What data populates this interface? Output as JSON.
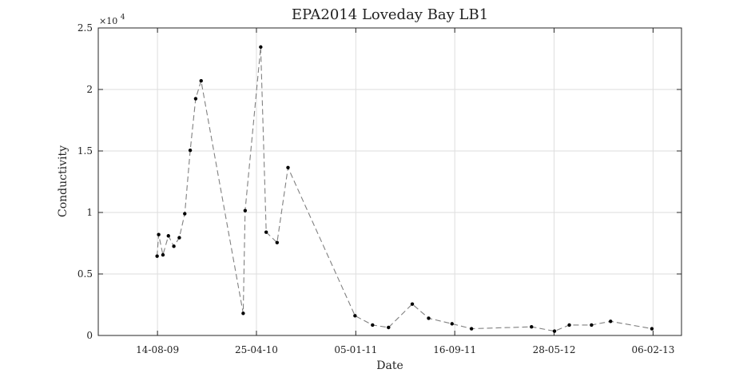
{
  "chart_data": {
    "type": "line",
    "title": "EPA2014 Loveday Bay LB1",
    "xlabel": "Date",
    "ylabel": "Conductivity",
    "y_multiplier_label": "×10",
    "y_multiplier_exponent": "4",
    "x_range": [
      "2009-03-15",
      "2013-04-20"
    ],
    "ylim": [
      0,
      2.5
    ],
    "y_ticks": [
      0,
      0.5,
      1,
      1.5,
      2,
      2.5
    ],
    "y_tick_labels": [
      "0",
      "0.5",
      "1",
      "1.5",
      "2",
      "2.5"
    ],
    "x_ticks": [
      "2009-08-14",
      "2010-04-25",
      "2011-01-05",
      "2011-09-16",
      "2012-05-28",
      "2013-02-06"
    ],
    "x_tick_labels": [
      "14-08-09",
      "25-04-10",
      "05-01-11",
      "16-09-11",
      "28-05-12",
      "06-02-13"
    ],
    "grid": true,
    "marker_color": "#000000",
    "line_color": "#808080",
    "line_style": "dashed",
    "series": [
      {
        "x": [
          "2009-08-13",
          "2009-08-17",
          "2009-08-28",
          "2009-09-11",
          "2009-09-25",
          "2009-10-09",
          "2009-10-23",
          "2009-11-06",
          "2009-11-20",
          "2009-12-04",
          "2010-03-22",
          "2010-03-27",
          "2010-05-06",
          "2010-05-20",
          "2010-06-17",
          "2010-07-15",
          "2011-01-03",
          "2011-02-17",
          "2011-03-30",
          "2011-05-30",
          "2011-07-11",
          "2011-09-09",
          "2011-10-29",
          "2012-03-31",
          "2012-05-29",
          "2012-07-06",
          "2012-09-01",
          "2012-10-20",
          "2013-02-03"
        ],
        "values": [
          0.645,
          0.82,
          0.655,
          0.81,
          0.725,
          0.795,
          0.99,
          1.505,
          1.925,
          2.07,
          0.18,
          1.015,
          2.345,
          0.84,
          0.755,
          1.365,
          0.16,
          0.085,
          0.065,
          0.255,
          0.14,
          0.095,
          0.055,
          0.07,
          0.035,
          0.085,
          0.085,
          0.115,
          0.055
        ]
      }
    ]
  }
}
